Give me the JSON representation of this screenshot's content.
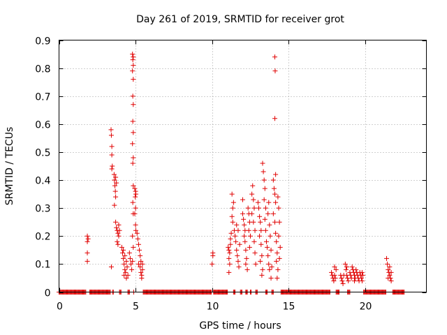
{
  "chart_data": {
    "type": "scatter",
    "title": "Day 261 of 2019, SRMTID for receiver grot",
    "xlabel": "GPS time / hours",
    "ylabel": "SRMTID / TECUs",
    "xlim": [
      0,
      24
    ],
    "ylim": [
      0,
      0.9
    ],
    "xticks": [
      0,
      5,
      10,
      15,
      20
    ],
    "xtick_labels": [
      "0",
      "5",
      "10",
      "15",
      "20"
    ],
    "yticks": [
      0,
      0.1,
      0.2,
      0.3,
      0.4,
      0.5,
      0.6,
      0.7,
      0.8,
      0.9
    ],
    "ytick_labels": [
      "0",
      "0.1",
      "0.2",
      "0.3",
      "0.4",
      "0.5",
      "0.6",
      "0.7",
      "0.8",
      "0.9"
    ],
    "grid": true,
    "marker": "+",
    "color": "#e00000",
    "series": [
      {
        "name": "SRMTID",
        "points": [
          [
            1.85,
            0.2
          ],
          [
            1.85,
            0.18
          ],
          [
            1.85,
            0.14
          ],
          [
            1.85,
            0.11
          ],
          [
            1.9,
            0.19
          ],
          [
            3.4,
            0.58
          ],
          [
            3.42,
            0.56
          ],
          [
            3.45,
            0.52
          ],
          [
            3.45,
            0.49
          ],
          [
            3.48,
            0.45
          ],
          [
            3.45,
            0.44
          ],
          [
            3.42,
            0.09
          ],
          [
            3.6,
            0.42
          ],
          [
            3.62,
            0.4
          ],
          [
            3.65,
            0.38
          ],
          [
            3.68,
            0.36
          ],
          [
            3.7,
            0.34
          ],
          [
            3.62,
            0.31
          ],
          [
            3.7,
            0.41
          ],
          [
            3.75,
            0.39
          ],
          [
            3.7,
            0.25
          ],
          [
            3.75,
            0.23
          ],
          [
            3.8,
            0.22
          ],
          [
            3.85,
            0.21
          ],
          [
            3.9,
            0.2
          ],
          [
            3.8,
            0.18
          ],
          [
            3.85,
            0.17
          ],
          [
            3.9,
            0.24
          ],
          [
            3.95,
            0.22
          ],
          [
            4.1,
            0.16
          ],
          [
            4.15,
            0.14
          ],
          [
            4.2,
            0.12
          ],
          [
            4.25,
            0.1
          ],
          [
            4.3,
            0.08
          ],
          [
            4.35,
            0.07
          ],
          [
            4.2,
            0.15
          ],
          [
            4.3,
            0.13
          ],
          [
            4.4,
            0.11
          ],
          [
            4.45,
            0.09
          ],
          [
            4.5,
            0.06
          ],
          [
            4.4,
            0.05
          ],
          [
            4.25,
            0.06
          ],
          [
            4.6,
            0.14
          ],
          [
            4.65,
            0.12
          ],
          [
            4.7,
            0.1
          ],
          [
            4.75,
            0.08
          ],
          [
            4.8,
            0.11
          ],
          [
            4.8,
            0.85
          ],
          [
            4.85,
            0.84
          ],
          [
            4.82,
            0.83
          ],
          [
            4.85,
            0.81
          ],
          [
            4.8,
            0.79
          ],
          [
            4.85,
            0.76
          ],
          [
            4.82,
            0.7
          ],
          [
            4.85,
            0.67
          ],
          [
            4.82,
            0.61
          ],
          [
            4.85,
            0.57
          ],
          [
            4.8,
            0.53
          ],
          [
            4.85,
            0.48
          ],
          [
            4.82,
            0.46
          ],
          [
            4.85,
            0.38
          ],
          [
            4.82,
            0.32
          ],
          [
            4.85,
            0.28
          ],
          [
            4.8,
            0.2
          ],
          [
            4.85,
            0.16
          ],
          [
            4.95,
            0.37
          ],
          [
            5.0,
            0.36
          ],
          [
            5.02,
            0.35
          ],
          [
            4.98,
            0.34
          ],
          [
            5.0,
            0.3
          ],
          [
            4.95,
            0.28
          ],
          [
            5.0,
            0.24
          ],
          [
            5.02,
            0.22
          ],
          [
            5.1,
            0.21
          ],
          [
            5.15,
            0.19
          ],
          [
            5.2,
            0.17
          ],
          [
            5.25,
            0.15
          ],
          [
            5.3,
            0.13
          ],
          [
            5.35,
            0.11
          ],
          [
            5.2,
            0.1
          ],
          [
            5.3,
            0.09
          ],
          [
            5.35,
            0.07
          ],
          [
            5.4,
            0.06
          ],
          [
            5.4,
            0.05
          ],
          [
            5.45,
            0.08
          ],
          [
            5.45,
            0.1
          ],
          [
            10.05,
            0.14
          ],
          [
            10.05,
            0.13
          ],
          [
            10.0,
            0.1
          ],
          [
            11.05,
            0.16
          ],
          [
            11.1,
            0.15
          ],
          [
            11.15,
            0.14
          ],
          [
            11.1,
            0.12
          ],
          [
            11.15,
            0.1
          ],
          [
            11.2,
            0.17
          ],
          [
            11.2,
            0.19
          ],
          [
            11.25,
            0.21
          ],
          [
            11.1,
            0.07
          ],
          [
            11.3,
            0.27
          ],
          [
            11.35,
            0.3
          ],
          [
            11.4,
            0.32
          ],
          [
            11.3,
            0.35
          ],
          [
            11.35,
            0.25
          ],
          [
            11.45,
            0.22
          ],
          [
            11.5,
            0.2
          ],
          [
            11.55,
            0.18
          ],
          [
            11.6,
            0.15
          ],
          [
            11.65,
            0.13
          ],
          [
            11.7,
            0.11
          ],
          [
            11.75,
            0.09
          ],
          [
            11.6,
            0.24
          ],
          [
            11.7,
            0.22
          ],
          [
            11.8,
            0.17
          ],
          [
            12.0,
            0.28
          ],
          [
            12.05,
            0.26
          ],
          [
            12.1,
            0.24
          ],
          [
            12.15,
            0.22
          ],
          [
            12.0,
            0.33
          ],
          [
            12.1,
            0.2
          ],
          [
            12.15,
            0.18
          ],
          [
            12.2,
            0.15
          ],
          [
            12.25,
            0.12
          ],
          [
            12.2,
            0.1
          ],
          [
            12.3,
            0.08
          ],
          [
            12.35,
            0.3
          ],
          [
            12.4,
            0.28
          ],
          [
            12.45,
            0.25
          ],
          [
            12.4,
            0.22
          ],
          [
            12.5,
            0.2
          ],
          [
            12.45,
            0.16
          ],
          [
            12.6,
            0.35
          ],
          [
            12.65,
            0.38
          ],
          [
            12.7,
            0.33
          ],
          [
            12.6,
            0.28
          ],
          [
            12.75,
            0.3
          ],
          [
            12.7,
            0.25
          ],
          [
            12.8,
            0.22
          ],
          [
            12.75,
            0.18
          ],
          [
            12.8,
            0.14
          ],
          [
            12.85,
            0.1
          ],
          [
            13.0,
            0.32
          ],
          [
            13.05,
            0.3
          ],
          [
            13.1,
            0.27
          ],
          [
            13.15,
            0.25
          ],
          [
            13.2,
            0.22
          ],
          [
            13.1,
            0.2
          ],
          [
            13.2,
            0.17
          ],
          [
            13.25,
            0.13
          ],
          [
            13.15,
            0.11
          ],
          [
            13.3,
            0.08
          ],
          [
            13.25,
            0.06
          ],
          [
            13.3,
            0.46
          ],
          [
            13.35,
            0.43
          ],
          [
            13.4,
            0.4
          ],
          [
            13.45,
            0.37
          ],
          [
            13.4,
            0.33
          ],
          [
            13.5,
            0.3
          ],
          [
            13.45,
            0.26
          ],
          [
            13.5,
            0.22
          ],
          [
            13.55,
            0.18
          ],
          [
            13.6,
            0.16
          ],
          [
            13.65,
            0.13
          ],
          [
            13.7,
            0.1
          ],
          [
            13.75,
            0.08
          ],
          [
            13.65,
            0.28
          ],
          [
            13.7,
            0.32
          ],
          [
            13.75,
            0.24
          ],
          [
            13.8,
            0.2
          ],
          [
            13.85,
            0.15
          ],
          [
            13.9,
            0.09
          ],
          [
            13.85,
            0.05
          ],
          [
            14.0,
            0.4
          ],
          [
            14.05,
            0.37
          ],
          [
            14.1,
            0.35
          ],
          [
            14.15,
            0.32
          ],
          [
            14.0,
            0.28
          ],
          [
            14.1,
            0.25
          ],
          [
            14.15,
            0.21
          ],
          [
            14.2,
            0.18
          ],
          [
            14.25,
            0.14
          ],
          [
            14.2,
            0.11
          ],
          [
            14.3,
            0.08
          ],
          [
            14.25,
            0.05
          ],
          [
            14.1,
            0.84
          ],
          [
            14.12,
            0.79
          ],
          [
            14.1,
            0.62
          ],
          [
            14.15,
            0.42
          ],
          [
            14.3,
            0.34
          ],
          [
            14.35,
            0.3
          ],
          [
            14.4,
            0.25
          ],
          [
            14.35,
            0.2
          ],
          [
            14.45,
            0.16
          ],
          [
            14.4,
            0.12
          ],
          [
            17.8,
            0.07
          ],
          [
            17.85,
            0.06
          ],
          [
            17.9,
            0.05
          ],
          [
            17.95,
            0.04
          ],
          [
            18.0,
            0.06
          ],
          [
            18.05,
            0.05
          ],
          [
            18.0,
            0.09
          ],
          [
            18.1,
            0.08
          ],
          [
            18.4,
            0.06
          ],
          [
            18.45,
            0.05
          ],
          [
            18.5,
            0.04
          ],
          [
            18.55,
            0.03
          ],
          [
            18.6,
            0.06
          ],
          [
            18.7,
            0.1
          ],
          [
            18.75,
            0.08
          ],
          [
            18.8,
            0.06
          ],
          [
            18.85,
            0.05
          ],
          [
            18.9,
            0.04
          ],
          [
            18.8,
            0.09
          ],
          [
            19.0,
            0.07
          ],
          [
            19.05,
            0.06
          ],
          [
            19.1,
            0.05
          ],
          [
            19.15,
            0.09
          ],
          [
            19.2,
            0.08
          ],
          [
            19.25,
            0.07
          ],
          [
            19.3,
            0.06
          ],
          [
            19.35,
            0.05
          ],
          [
            19.3,
            0.04
          ],
          [
            19.4,
            0.08
          ],
          [
            19.45,
            0.07
          ],
          [
            19.5,
            0.06
          ],
          [
            19.55,
            0.05
          ],
          [
            19.6,
            0.04
          ],
          [
            19.65,
            0.07
          ],
          [
            19.7,
            0.06
          ],
          [
            19.75,
            0.05
          ],
          [
            19.8,
            0.07
          ],
          [
            19.85,
            0.06
          ],
          [
            19.8,
            0.04
          ],
          [
            21.4,
            0.12
          ],
          [
            21.45,
            0.1
          ],
          [
            21.5,
            0.08
          ],
          [
            21.55,
            0.07
          ],
          [
            21.6,
            0.06
          ],
          [
            21.65,
            0.05
          ],
          [
            21.7,
            0.04
          ],
          [
            21.5,
            0.05
          ],
          [
            21.6,
            0.09
          ],
          [
            21.7,
            0.07
          ]
        ],
        "zero_bands": [
          [
            0.0,
            1.75
          ],
          [
            2.0,
            3.35
          ],
          [
            3.5,
            3.55
          ],
          [
            3.95,
            4.05
          ],
          [
            4.5,
            4.6
          ],
          [
            4.88,
            4.92
          ],
          [
            5.5,
            9.95
          ],
          [
            10.1,
            11.0
          ],
          [
            11.4,
            11.5
          ],
          [
            11.85,
            11.95
          ],
          [
            12.2,
            12.3
          ],
          [
            12.5,
            12.55
          ],
          [
            12.85,
            12.95
          ],
          [
            13.5,
            13.6
          ],
          [
            13.9,
            14.0
          ],
          [
            14.5,
            17.7
          ],
          [
            18.1,
            18.3
          ],
          [
            18.85,
            19.0
          ],
          [
            19.9,
            21.35
          ],
          [
            21.8,
            22.55
          ]
        ]
      }
    ]
  }
}
